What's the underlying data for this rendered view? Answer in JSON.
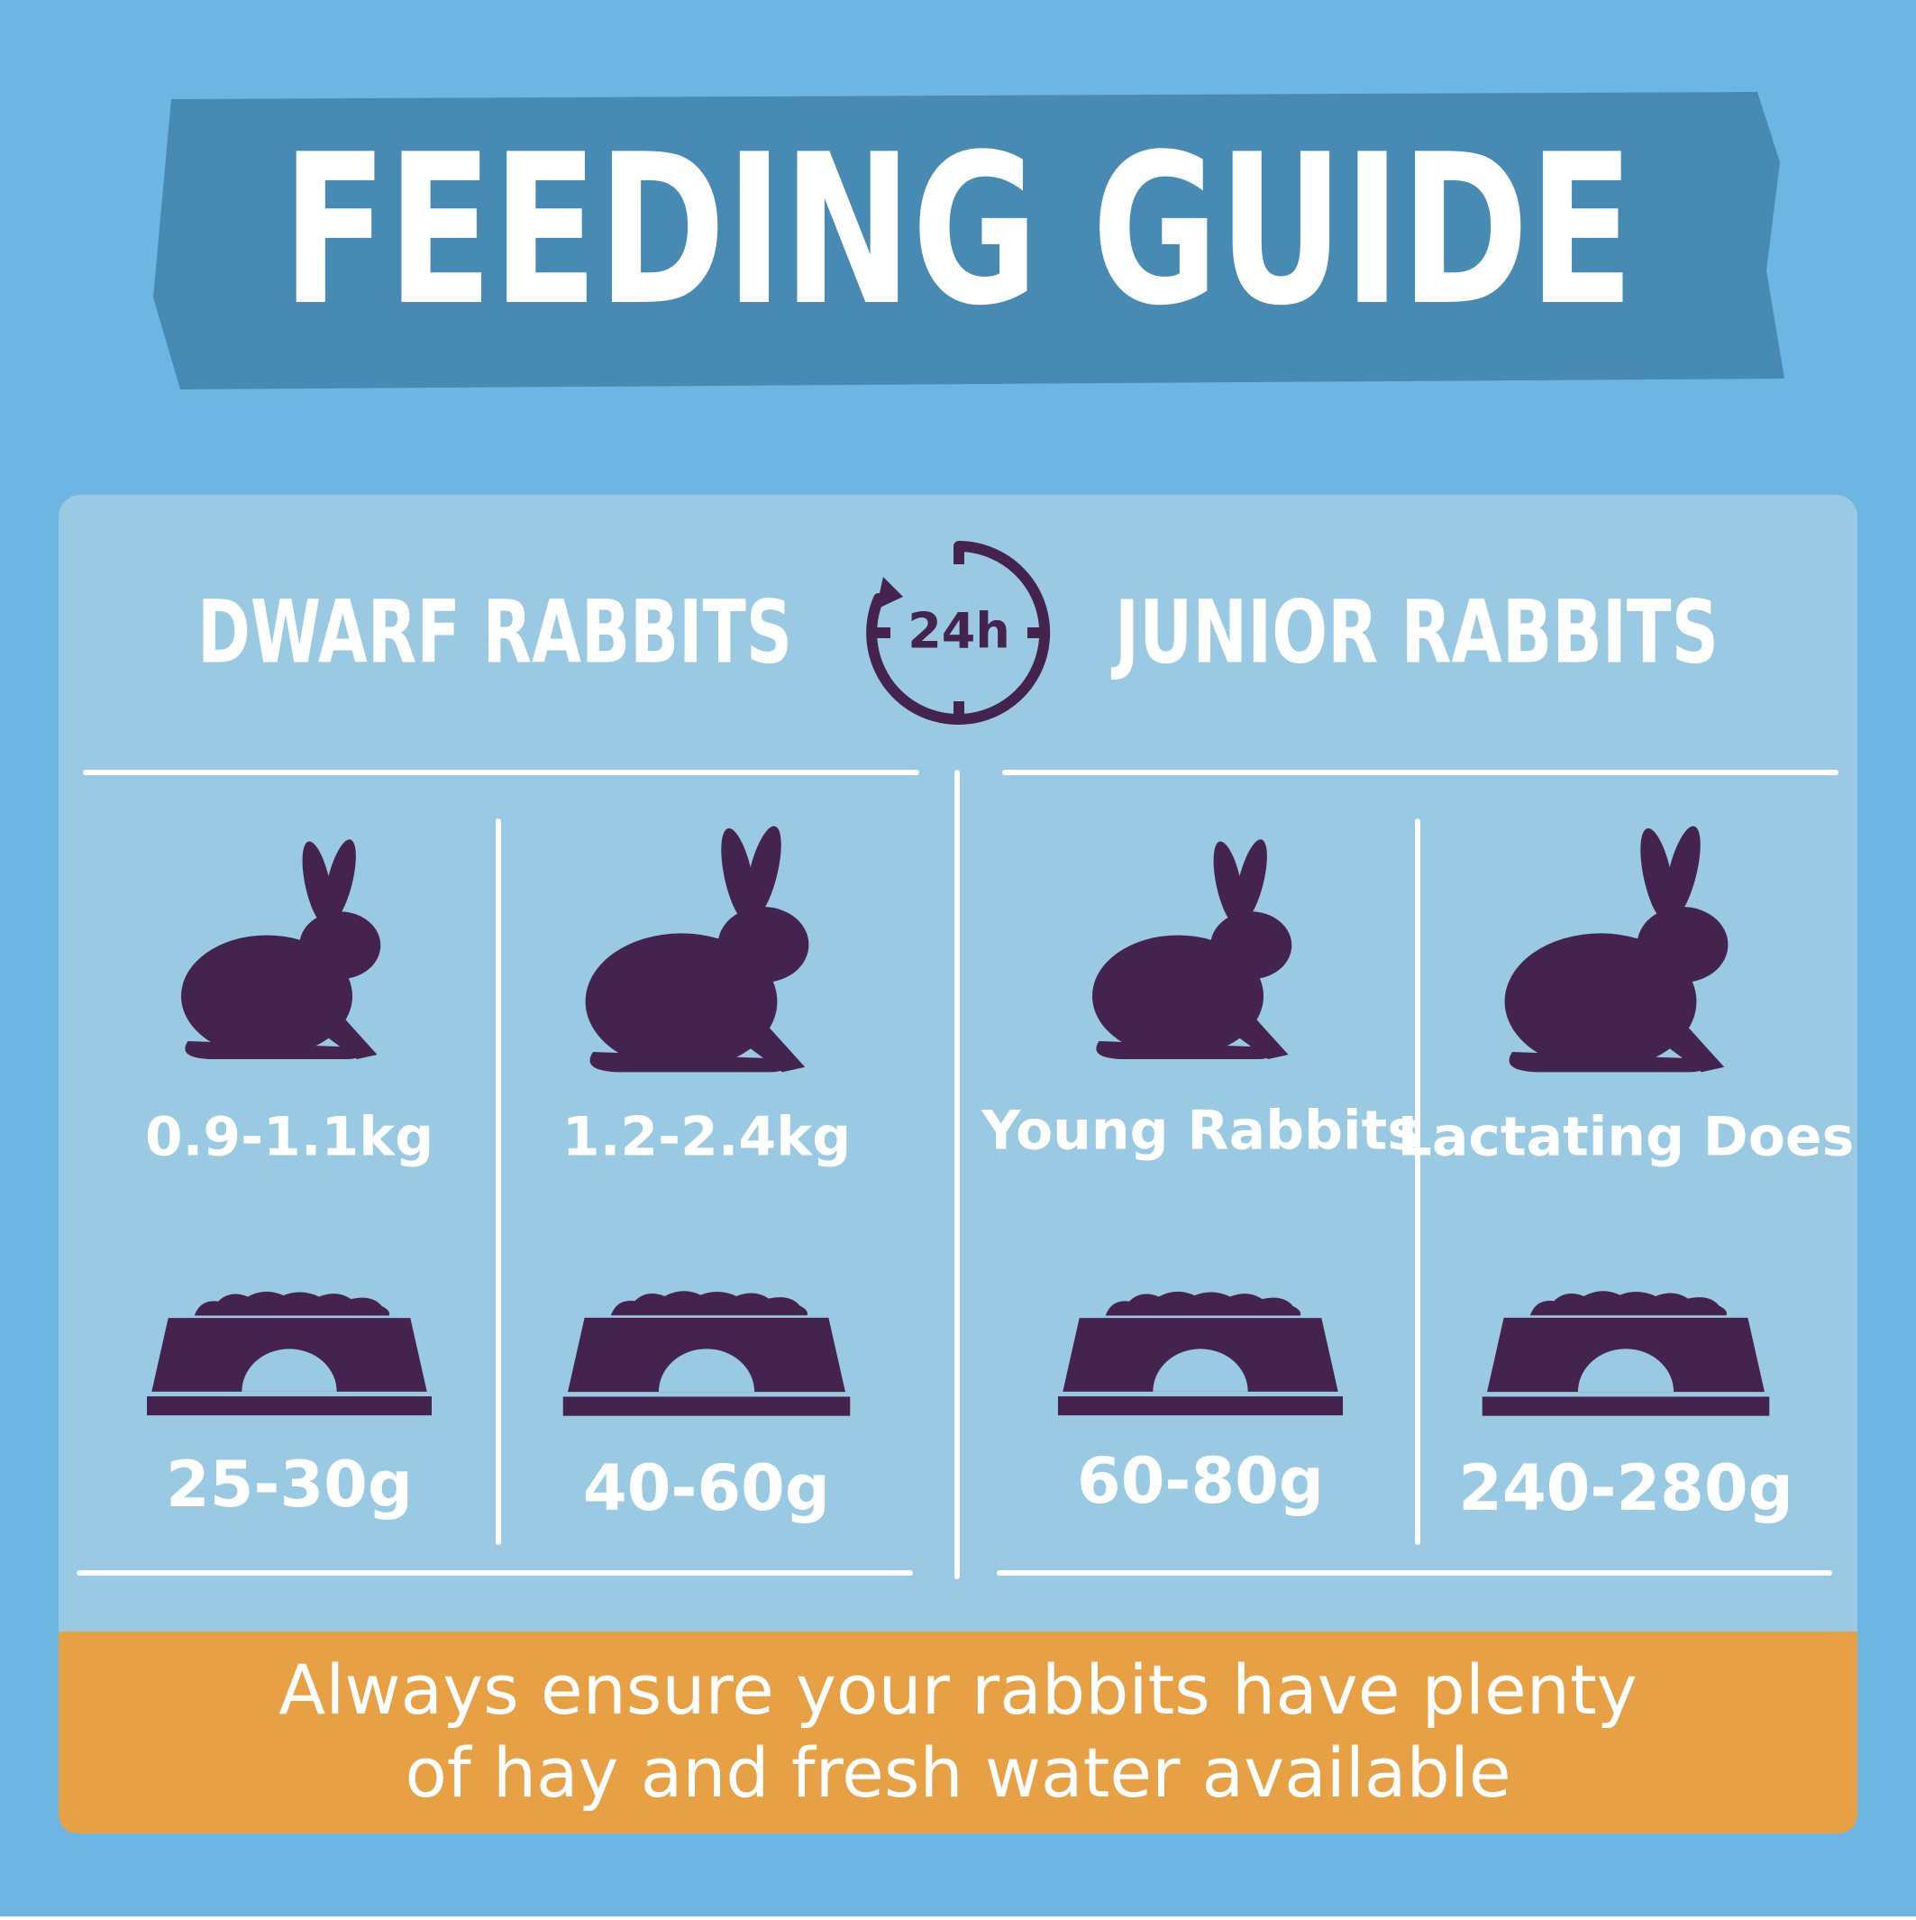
{
  "header": {
    "title": "FEEDING GUIDE"
  },
  "clock": {
    "label": "24h"
  },
  "groups": [
    {
      "title": "DWARF RABBITS",
      "items": [
        {
          "label": "0.9-1.1kg",
          "amount": "25-30g"
        },
        {
          "label": "1.2-2.4kg",
          "amount": "40-60g"
        }
      ]
    },
    {
      "title": "JUNIOR RABBITS",
      "items": [
        {
          "label": "Young Rabbits",
          "amount": "60-80g"
        },
        {
          "label": "Lactating Does",
          "amount": "240-280g"
        }
      ]
    }
  ],
  "footer": {
    "lines": [
      "Always ensure your rabbits have plenty",
      "of hay and fresh water available"
    ]
  }
}
